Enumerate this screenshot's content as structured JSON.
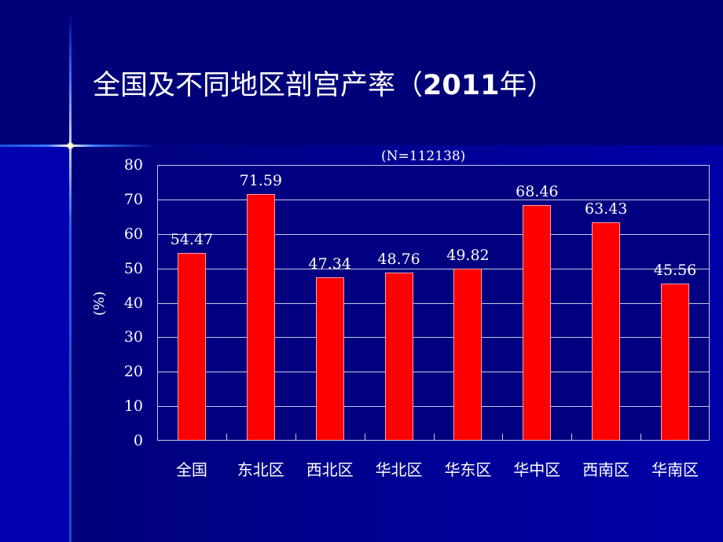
{
  "slide": {
    "title_prefix": "全国及不同地区剖宫产率（",
    "title_year": "2011",
    "title_suffix": "年）"
  },
  "chart_data": {
    "type": "bar",
    "title": "全国及不同地区剖宫产率（2011年）",
    "subtitle": "(N=112138)",
    "categories": [
      "全国",
      "东北区",
      "西北区",
      "华北区",
      "华东区",
      "华中区",
      "西南区",
      "华南区"
    ],
    "values": [
      54.47,
      71.59,
      47.34,
      48.76,
      49.82,
      68.46,
      63.43,
      45.56
    ],
    "value_labels": [
      "54.47",
      "71.59",
      "47.34",
      "48.76",
      "49.82",
      "68.46",
      "63.43",
      "45.56"
    ],
    "xlabel": "",
    "ylabel": "(%)",
    "ylim": [
      0,
      80
    ],
    "yticks": [
      "0",
      "10",
      "20",
      "30",
      "40",
      "50",
      "60",
      "70",
      "80"
    ],
    "grid": true,
    "legend": "none",
    "bar_color": "#ff0000",
    "background_color": "#000080"
  }
}
